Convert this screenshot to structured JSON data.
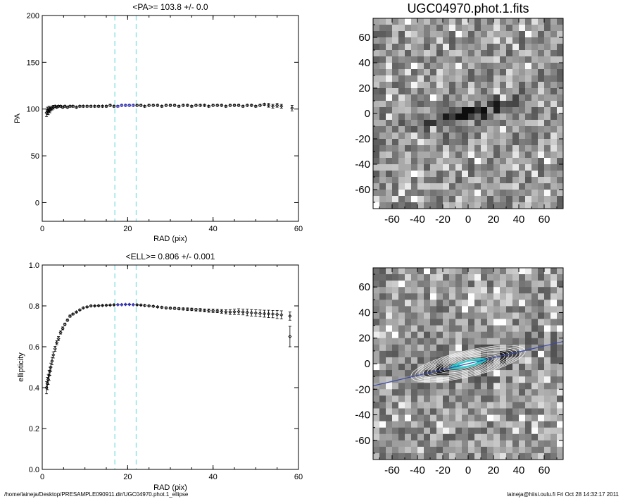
{
  "footer": {
    "path": "/home/laineja/Desktop/PRESAMPLE090911.dir/UGC04970.phot.1_ellipse",
    "user_time": "laineja@hiisi.oulu.fi  Fri Oct 28 14:32:17 2011"
  },
  "colors": {
    "marker": "#000000",
    "fit_region": "#1a1aa8",
    "guide_lines": "#88e0e0",
    "major_axis": "#3a4aa8",
    "contours": "#ffffff",
    "core": "#22d6d6"
  },
  "chart_data": [
    {
      "type": "scatter",
      "title": "<PA>= 103.8 +/-   0.0",
      "xlabel": "RAD (pix)",
      "ylabel": "PA",
      "xlim": [
        0,
        60
      ],
      "ylim": [
        -20,
        200
      ],
      "xticks": [
        0,
        20,
        40,
        60
      ],
      "yticks": [
        0,
        50,
        100,
        150,
        200
      ],
      "guide_x": [
        17,
        22
      ],
      "fit_range": [
        17,
        22
      ],
      "grid": false,
      "series": [
        {
          "x": [
            1.0,
            1.2,
            1.4,
            1.6,
            1.8,
            2.0,
            2.3,
            2.6,
            3.0,
            3.4,
            3.8,
            4.3,
            4.8,
            5.3,
            5.9,
            6.5,
            7.2,
            8.0,
            8.8,
            9.6,
            10.5,
            11.4,
            12.3,
            13.2,
            14.1,
            15.0,
            15.9,
            16.8,
            17.7,
            18.6,
            19.5,
            20.4,
            21.3,
            22.2,
            23.1,
            24.0,
            25.0,
            26.0,
            27.0,
            28.0,
            29.0,
            30.0,
            31.0,
            32.0,
            33.0,
            34.0,
            35.0,
            36.0,
            37.0,
            38.0,
            39.0,
            40.0,
            41.0,
            42.0,
            43.0,
            44.0,
            45.0,
            46.0,
            47.0,
            48.0,
            49.0,
            50.0,
            51.0,
            52.0,
            53.0,
            54.0,
            55.0,
            56.0,
            58.5
          ],
          "y": [
            96,
            98,
            97,
            100,
            99,
            100,
            101,
            102,
            103,
            102,
            103,
            103,
            102,
            103,
            102,
            103,
            103,
            102,
            103,
            103,
            103,
            103,
            103,
            103,
            103,
            103,
            104,
            103,
            103,
            104,
            104,
            104,
            104,
            104,
            104,
            103,
            104,
            104,
            104,
            103,
            104,
            104,
            104,
            103,
            104,
            104,
            103,
            104,
            104,
            104,
            103,
            104,
            104,
            104,
            103,
            104,
            104,
            104,
            103,
            104,
            104,
            103,
            104,
            105,
            104,
            103,
            104,
            103,
            101
          ],
          "err": [
            4,
            4,
            3,
            3,
            3,
            2,
            2,
            2,
            1,
            1,
            1,
            1,
            1,
            1,
            1,
            1,
            1,
            1,
            1,
            1,
            1,
            1,
            1,
            1,
            1,
            1,
            1,
            1,
            1,
            1,
            1,
            1,
            1,
            1,
            1,
            1,
            1,
            1,
            1,
            1,
            1,
            1,
            1,
            1,
            1,
            1,
            1,
            1,
            1,
            1,
            1,
            1,
            1,
            1,
            1,
            1,
            1,
            1,
            1,
            1,
            1,
            1,
            1,
            1,
            2,
            2,
            2,
            2,
            3
          ]
        }
      ]
    },
    {
      "type": "scatter",
      "title": "<ELL>= 0.806 +/-  0.001",
      "xlabel": "RAD (pix)",
      "ylabel": "ellipticity",
      "xlim": [
        0,
        60
      ],
      "ylim": [
        0.0,
        1.0
      ],
      "xticks": [
        0,
        20,
        40,
        60
      ],
      "yticks": [
        "0.0",
        "0.2",
        "0.4",
        "0.6",
        "0.8",
        "1.0"
      ],
      "guide_x": [
        17,
        22
      ],
      "fit_range": [
        17,
        22
      ],
      "grid": false,
      "series": [
        {
          "x": [
            1.0,
            1.2,
            1.4,
            1.6,
            1.8,
            2.0,
            2.3,
            2.6,
            3.0,
            3.4,
            3.8,
            4.3,
            4.8,
            5.3,
            5.9,
            6.5,
            7.2,
            8.0,
            8.8,
            9.6,
            10.5,
            11.4,
            12.3,
            13.2,
            14.1,
            15.0,
            15.9,
            16.8,
            17.7,
            18.6,
            19.5,
            20.4,
            21.3,
            22.2,
            23.1,
            24.0,
            25.0,
            26.0,
            27.0,
            28.0,
            29.0,
            30.0,
            31.0,
            32.0,
            33.0,
            34.0,
            35.0,
            36.0,
            37.0,
            38.0,
            39.0,
            40.0,
            41.0,
            42.0,
            43.0,
            44.0,
            45.0,
            46.0,
            47.0,
            48.0,
            49.0,
            50.0,
            51.0,
            52.0,
            53.0,
            54.0,
            55.0,
            56.0,
            58.0
          ],
          "y": [
            0.4,
            0.42,
            0.44,
            0.46,
            0.48,
            0.5,
            0.53,
            0.56,
            0.59,
            0.62,
            0.64,
            0.67,
            0.69,
            0.71,
            0.73,
            0.75,
            0.76,
            0.77,
            0.78,
            0.79,
            0.795,
            0.8,
            0.8,
            0.801,
            0.802,
            0.803,
            0.804,
            0.805,
            0.806,
            0.806,
            0.807,
            0.807,
            0.806,
            0.805,
            0.804,
            0.802,
            0.8,
            0.798,
            0.795,
            0.793,
            0.79,
            0.789,
            0.788,
            0.786,
            0.785,
            0.784,
            0.783,
            0.781,
            0.78,
            0.778,
            0.777,
            0.776,
            0.775,
            0.773,
            0.771,
            0.77,
            0.771,
            0.772,
            0.77,
            0.768,
            0.766,
            0.765,
            0.763,
            0.762,
            0.761,
            0.76,
            0.758,
            0.756,
            0.75
          ],
          "err": [
            0.03,
            0.03,
            0.025,
            0.025,
            0.02,
            0.02,
            0.018,
            0.015,
            0.012,
            0.01,
            0.01,
            0.008,
            0.007,
            0.006,
            0.005,
            0.005,
            0.004,
            0.004,
            0.003,
            0.003,
            0.003,
            0.003,
            0.002,
            0.002,
            0.002,
            0.002,
            0.002,
            0.002,
            0.002,
            0.002,
            0.002,
            0.002,
            0.002,
            0.002,
            0.002,
            0.003,
            0.003,
            0.003,
            0.003,
            0.004,
            0.004,
            0.004,
            0.005,
            0.005,
            0.005,
            0.006,
            0.006,
            0.006,
            0.007,
            0.007,
            0.008,
            0.008,
            0.008,
            0.009,
            0.01,
            0.012,
            0.013,
            0.014,
            0.014,
            0.016,
            0.016,
            0.016,
            0.017,
            0.017,
            0.018,
            0.018,
            0.02,
            0.02,
            0.02
          ]
        },
        {
          "x": [
            58.0
          ],
          "y": [
            0.65
          ],
          "err": [
            0.05
          ]
        }
      ]
    },
    {
      "type": "heatmap",
      "title": "UGC04970.phot.1.fits",
      "xlim": [
        -75,
        75
      ],
      "ylim": [
        -75,
        75
      ],
      "xticks": [
        -60,
        -40,
        -20,
        0,
        20,
        40,
        60
      ],
      "yticks": [
        -60,
        -40,
        -20,
        0,
        20,
        40,
        60
      ],
      "grid": false
    },
    {
      "type": "heatmap",
      "title": "",
      "xlim": [
        -75,
        75
      ],
      "ylim": [
        -75,
        75
      ],
      "xticks": [
        -60,
        -40,
        -20,
        0,
        20,
        40,
        60
      ],
      "yticks": [
        -60,
        -40,
        -20,
        0,
        20,
        40,
        60
      ],
      "grid": false
    }
  ]
}
